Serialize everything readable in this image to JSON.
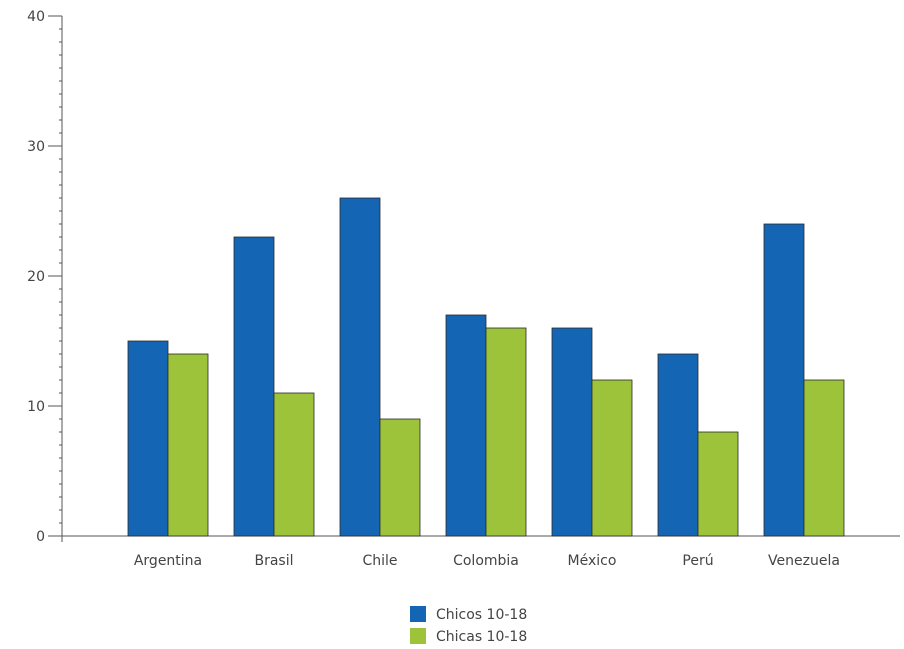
{
  "chart_data": {
    "type": "bar",
    "categories": [
      "Argentina",
      "Brasil",
      "Chile",
      "Colombia",
      "México",
      "Perú",
      "Venezuela"
    ],
    "series": [
      {
        "name": "Chicos 10-18",
        "color": "#1565b5",
        "values": [
          15,
          23,
          26,
          17,
          16,
          14,
          24
        ]
      },
      {
        "name": "Chicas 10-18",
        "color": "#9dc33b",
        "values": [
          14,
          11,
          9,
          16,
          12,
          8,
          12
        ]
      }
    ],
    "ylim": [
      0,
      40
    ],
    "yticks": [
      0,
      10,
      20,
      30,
      40
    ],
    "title": "",
    "xlabel": "",
    "ylabel": "",
    "legend_position": "bottom-center",
    "grid": false
  }
}
